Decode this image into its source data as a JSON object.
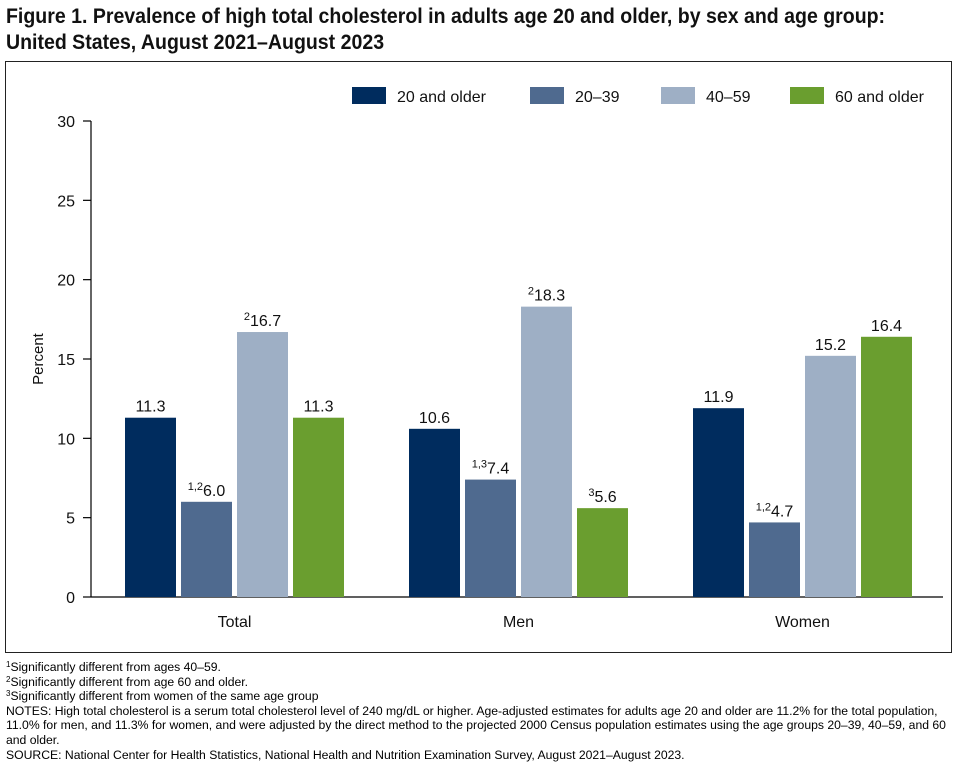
{
  "title": {
    "line1": "Figure 1. Prevalence of high total cholesterol in adults age 20 and older, by sex and age group:",
    "line2": "United States, August 2021–August 2023"
  },
  "chart_data": {
    "type": "bar",
    "categories": [
      "Total",
      "Men",
      "Women"
    ],
    "series": [
      {
        "name": "20 and older",
        "color": "#002c5e",
        "values": [
          11.3,
          10.6,
          11.9
        ],
        "superscripts": [
          "",
          "",
          ""
        ]
      },
      {
        "name": "20–39",
        "color": "#4f6a8f",
        "values": [
          6.0,
          7.4,
          4.7
        ],
        "superscripts": [
          "1,2",
          "1,3",
          "1,2"
        ]
      },
      {
        "name": "40–59",
        "color": "#9eafc5",
        "values": [
          16.7,
          18.3,
          15.2
        ],
        "superscripts": [
          "2",
          "2",
          ""
        ]
      },
      {
        "name": "60 and older",
        "color": "#6a9e2f",
        "values": [
          11.3,
          5.6,
          16.4
        ],
        "superscripts": [
          "",
          "3",
          ""
        ]
      }
    ],
    "value_labels": [
      [
        "11.3",
        "10.6",
        "11.9"
      ],
      [
        "6.0",
        "7.4",
        "4.7"
      ],
      [
        "16.7",
        "18.3",
        "15.2"
      ],
      [
        "11.3",
        "5.6",
        "16.4"
      ]
    ],
    "ylabel": "Percent",
    "xlabel": "",
    "ylim": [
      0,
      30
    ],
    "yticks": [
      0,
      5,
      10,
      15,
      20,
      25,
      30
    ],
    "grid": false,
    "legend_position": "top-right"
  },
  "footnotes": [
    {
      "sup": "1",
      "text": "Significantly different from ages 40–59."
    },
    {
      "sup": "2",
      "text": "Significantly different from age 60 and older."
    },
    {
      "sup": "3",
      "text": "Significantly different from women of the same age group"
    }
  ],
  "notes": "NOTES: High total cholesterol is a serum total cholesterol level of 240 mg/dL or higher. Age-adjusted estimates for adults age 20 and older are 11.2% for the total population, 11.0% for men, and 11.3% for women, and were adjusted by the direct method to the projected 2000 Census population estimates using the age groups 20–39, 40–59, and 60 and older.",
  "source": "SOURCE: National Center for Health Statistics, National Health and Nutrition Examination Survey, August 2021–August 2023."
}
